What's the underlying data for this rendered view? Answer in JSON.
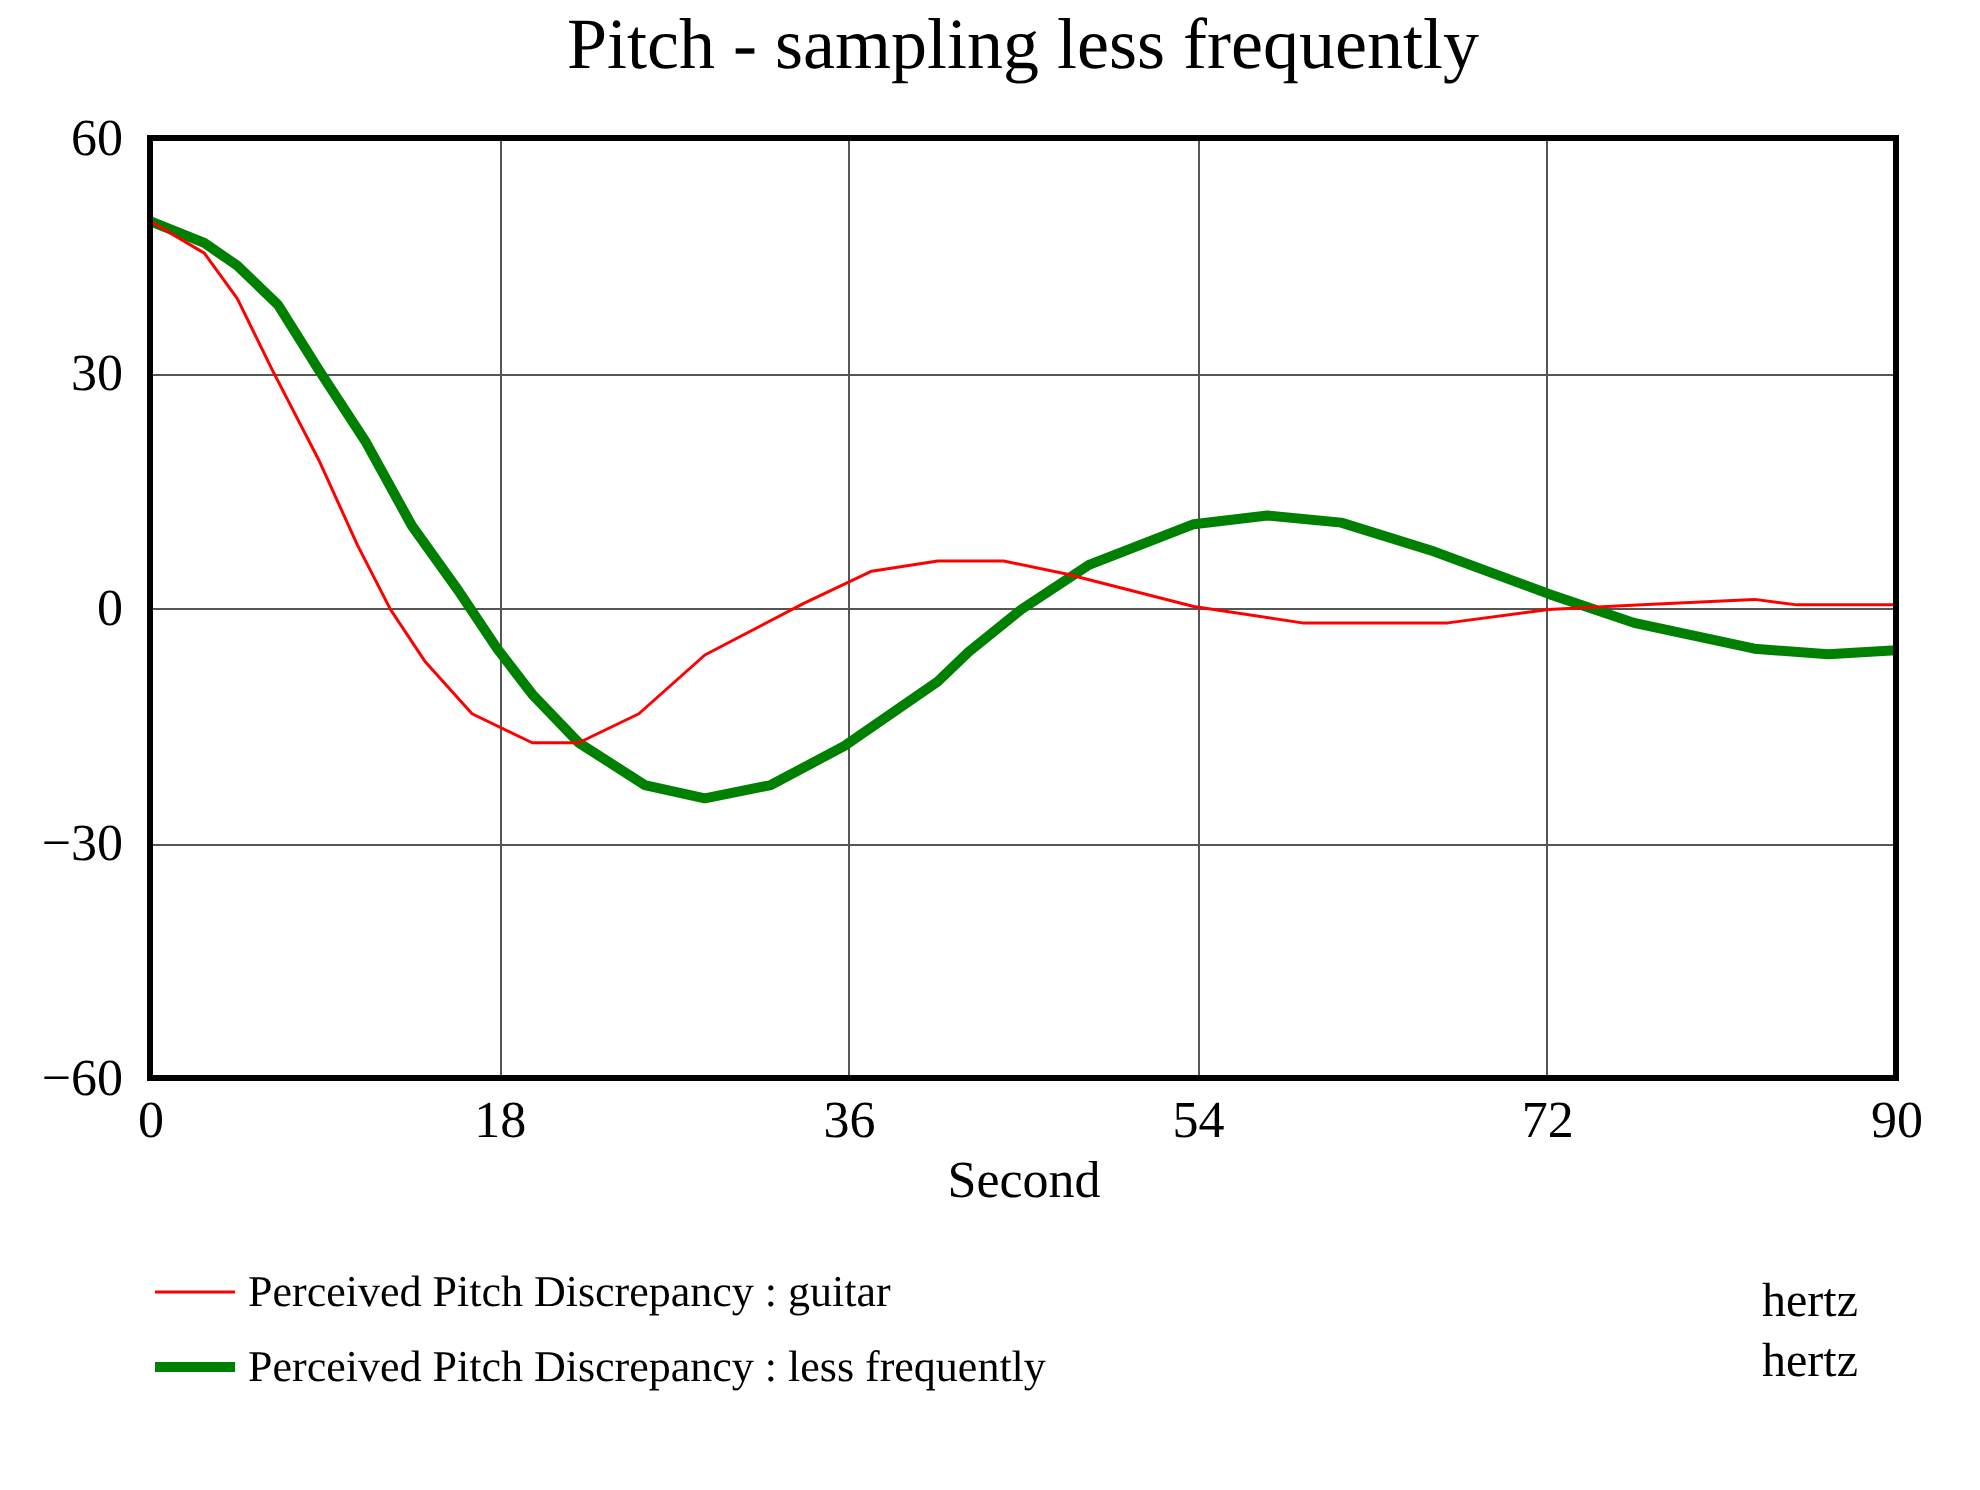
{
  "chart_data": {
    "type": "line",
    "title": "Pitch - sampling less frequently",
    "xlabel": "Second",
    "xlim": [
      0,
      90
    ],
    "xticks": [
      0,
      18,
      36,
      54,
      72,
      90
    ],
    "ylim": [
      -60,
      60
    ],
    "yticks": [
      -60,
      -30,
      0,
      30,
      60
    ],
    "grid": true,
    "legend": "bottom",
    "line_style": "solid",
    "marker": "none",
    "annotations": [
      "hertz",
      "hertz"
    ],
    "series": [
      {
        "name": "Perceived Pitch Discrepancy : guitar",
        "color": "#ff0000",
        "x": [
          0,
          2.8,
          4.5,
          6.3,
          8.7,
          10.7,
          12.4,
          14.2,
          16.6,
          19.7,
          22.1,
          25.2,
          28.6,
          33.7,
          37.2,
          40.6,
          44,
          47.3,
          53.8,
          59.4,
          66.9,
          72.1,
          76.9,
          82.7,
          84.9,
          90
        ],
        "values": [
          49.4,
          45.3,
          39.5,
          30.4,
          18.9,
          8,
          -0.2,
          -6.9,
          -13.5,
          -17.2,
          -17.2,
          -13.5,
          -6,
          0.6,
          4.7,
          6,
          6,
          4.3,
          0.2,
          -1.9,
          -1.9,
          -0.2,
          0.4,
          1.1,
          0.4,
          0.4
        ]
      },
      {
        "name": "Perceived Pitch Discrepancy : less frequently",
        "color": "#008000",
        "x": [
          0,
          2.8,
          4.5,
          6.6,
          8.7,
          11.1,
          13.5,
          15.9,
          17.9,
          19.7,
          22.1,
          25.5,
          28.6,
          32,
          35.8,
          40.6,
          42.2,
          44.9,
          48.4,
          53.8,
          57.6,
          61.4,
          66.2,
          72.1,
          76.5,
          82.7,
          86.5,
          90
        ],
        "values": [
          49.4,
          46.6,
          43.7,
          38.7,
          30.4,
          21.3,
          10.5,
          2.2,
          -5.2,
          -11,
          -17.2,
          -22.6,
          -24.3,
          -22.6,
          -17.6,
          -9.4,
          -5.6,
          -0.2,
          5.5,
          10.7,
          11.8,
          10.9,
          7.2,
          1.8,
          -1.9,
          -5.2,
          -5.9,
          -5.4
        ]
      }
    ]
  }
}
